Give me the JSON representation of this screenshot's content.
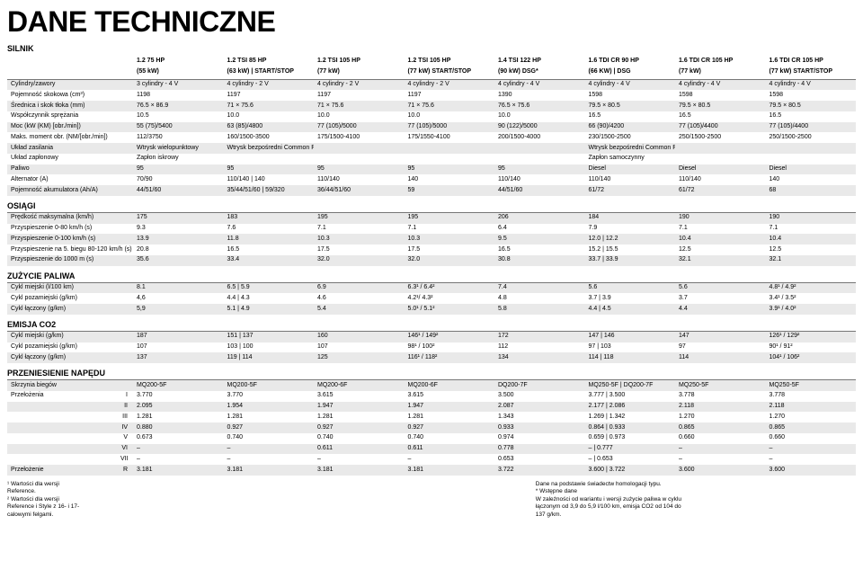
{
  "page_title": "DANE TECHNICZNE",
  "sections": {
    "silnik": "SILNIK",
    "osiagi": "OSIĄGI",
    "zuzycie": "ZUŻYCIE PALIWA",
    "emisja": "EMISJA CO2",
    "przeniesienie": "PRZENIESIENIE NAPĘDU"
  },
  "headers": {
    "top": [
      "1.2 75 HP",
      "1.2 TSI 85 HP",
      "1.2 TSI 105 HP",
      "1.2 TSI 105 HP",
      "1.4 TSI 122 HP",
      "1.6 TDI CR 90 HP",
      "1.6 TDI CR 105 HP",
      "1.6 TDI CR 105 HP"
    ],
    "bottom": [
      "(55 kW)",
      "(63 kW) | START/STOP",
      "(77 kW)",
      "(77 kW) START/STOP",
      "(90 kW) DSG*",
      "(66 KW) | DSG",
      "(77 kW)",
      "(77 kW) START/STOP"
    ]
  },
  "silnik_rows": [
    {
      "label": "Cylindry/zawory",
      "v": [
        "3 cylindry - 4 V",
        "4 cylindry - 2 V",
        "4 cylindry - 2 V",
        "4 cylindry - 2 V",
        "4 cylindry - 4 V",
        "4 cylindry - 4 V",
        "4 cylindry - 4 V",
        "4 cylindry - 4 V"
      ]
    },
    {
      "label": "Pojemność skokowa (cm³)",
      "v": [
        "1198",
        "1197",
        "1197",
        "1197",
        "1390",
        "1598",
        "1598",
        "1598"
      ]
    },
    {
      "label": "Średnica i skok tłoka (mm)",
      "v": [
        "76.5 × 86.9",
        "71 × 75.6",
        "71 × 75.6",
        "71 × 75.6",
        "76.5 × 75.6",
        "79.5 × 80.5",
        "79.5 × 80.5",
        "79.5 × 80.5"
      ]
    },
    {
      "label": "Współczynnik sprężania",
      "v": [
        "10.5",
        "10.0",
        "10.0",
        "10.0",
        "10.0",
        "16.5",
        "16.5",
        "16.5"
      ]
    },
    {
      "label": "Moc (kW (KM) [obr./min])",
      "v": [
        "55 (75)/5400",
        "63 (85)/4800",
        "77 (105)/5000",
        "77 (105)/5000",
        "90 (122)/5000",
        "66 (90)/4200",
        "77 (105)/4400",
        "77 (105)/4400"
      ]
    },
    {
      "label": "Maks. moment obr. (NM/[obr./min])",
      "v": [
        "112/3750",
        "160/1500-3500",
        "175/1500-4100",
        "175/1550-4100",
        "200/1500-4000",
        "230/1500-2500",
        "250/1500-2500",
        "250/1500-2500"
      ]
    },
    {
      "label": "Układ zasilania",
      "v": [
        "Wtrysk wielopunktowy",
        "Wtrysk bezpośredni Common Rail",
        "",
        "",
        "",
        "Wtrysk bezpośredni Common Rail",
        "",
        ""
      ]
    },
    {
      "label": "Układ zapłonowy",
      "v": [
        "Zapłon iskrowy",
        "",
        "",
        "",
        "",
        "Zapłon samoczynny",
        "",
        ""
      ]
    },
    {
      "label": "Paliwo",
      "v": [
        "95",
        "95",
        "95",
        "95",
        "95",
        "Diesel",
        "Diesel",
        "Diesel"
      ]
    },
    {
      "label": "Alternator (A)",
      "v": [
        "70/90",
        "110/140 | 140",
        "110/140",
        "140",
        "110/140",
        "110/140",
        "110/140",
        "140"
      ]
    },
    {
      "label": "Pojemność akumulatora (Ah/A)",
      "v": [
        "44/51/60",
        "35/44/51/60 | 59/320",
        "36/44/51/60",
        "59",
        "44/51/60",
        "61/72",
        "61/72",
        "68"
      ]
    }
  ],
  "osiagi_rows": [
    {
      "label": "Prędkość maksymalna (km/h)",
      "v": [
        "175",
        "183",
        "195",
        "195",
        "206",
        "184",
        "190",
        "190"
      ]
    },
    {
      "label": "Przyspieszenie 0-80 km/h (s)",
      "v": [
        "9.3",
        "7.6",
        "7.1",
        "7.1",
        "6.4",
        "7.9",
        "7.1",
        "7.1"
      ]
    },
    {
      "label": "Przyspieszenie 0-100 km/h (s)",
      "v": [
        "13.9",
        "11.8",
        "10.3",
        "10.3",
        "9.5",
        "12.0 | 12.2",
        "10.4",
        "10.4"
      ]
    },
    {
      "label": "Przyspieszenie na 5. biegu 80-120 km/h (s)",
      "v": [
        "20.8",
        "16.5",
        "17.5",
        "17.5",
        "16.5",
        "15.2 | 15.5",
        "12.5",
        "12.5"
      ]
    },
    {
      "label": "Przyspieszenie do 1000 m (s)",
      "v": [
        "35.6",
        "33.4",
        "32.0",
        "32.0",
        "30.8",
        "33.7 | 33.9",
        "32.1",
        "32.1"
      ]
    }
  ],
  "zuzycie_rows": [
    {
      "label": "Cykl miejski (l/100 km)",
      "v": [
        "8.1",
        "6.5 | 5.9",
        "6.9",
        "6.3¹ / 6.4²",
        "7.4",
        "5.6",
        "5.6",
        "4.8¹ / 4.9²"
      ]
    },
    {
      "label": "Cykl pozamiejski (g/km)",
      "v": [
        "4,6",
        "4.4 | 4.3",
        "4.6",
        "4.2¹/ 4.3²",
        "4.8",
        "3.7 | 3.9",
        "3.7",
        "3.4¹ / 3.5²"
      ]
    },
    {
      "label": "Cykl łączony (g/km)",
      "v": [
        "5,9",
        "5.1 | 4.9",
        "5.4",
        "5.0¹ / 5.1²",
        "5.8",
        "4.4 | 4.5",
        "4.4",
        "3.9¹ / 4.0²"
      ]
    }
  ],
  "emisja_rows": [
    {
      "label": "Cykl miejski (g/km)",
      "v": [
        "187",
        "151 | 137",
        "160",
        "146¹ / 149²",
        "172",
        "147 | 146",
        "147",
        "126¹ / 129²"
      ]
    },
    {
      "label": "Cykl pozamiejski (g/km)",
      "v": [
        "107",
        "103 | 100",
        "107",
        "98¹ / 100²",
        "112",
        "97 | 103",
        "97",
        "90¹ / 91²"
      ]
    },
    {
      "label": "Cykl łączony (g/km)",
      "v": [
        "137",
        "119 | 114",
        "125",
        "116¹ / 118²",
        "134",
        "114 | 118",
        "114",
        "104¹ / 106²"
      ]
    }
  ],
  "przeniesienie": {
    "label_skrzynia": "Skrzynia biegów",
    "skrzynia": [
      "MQ200-5F",
      "MQ200-5F",
      "MQ200-6F",
      "MQ200-6F",
      "DQ200-7F",
      "MQ250-5F | DQ200-7F",
      "MQ250-5F",
      "MQ250-5F"
    ],
    "label_przel": "Przełożenia",
    "gears": [
      {
        "g": "I",
        "v": [
          "3.770",
          "3.770",
          "3.615",
          "3.615",
          "3.500",
          "3.777 | 3.500",
          "3.778",
          "3.778"
        ]
      },
      {
        "g": "II",
        "v": [
          "2.095",
          "1.954",
          "1.947",
          "1.947",
          "2.087",
          "2.177 | 2.086",
          "2.118",
          "2.118"
        ]
      },
      {
        "g": "III",
        "v": [
          "1.281",
          "1.281",
          "1.281",
          "1.281",
          "1.343",
          "1.269 | 1.342",
          "1.270",
          "1.270"
        ]
      },
      {
        "g": "IV",
        "v": [
          "0.880",
          "0.927",
          "0.927",
          "0.927",
          "0.933",
          "0.864 | 0.933",
          "0.865",
          "0.865"
        ]
      },
      {
        "g": "V",
        "v": [
          "0.673",
          "0.740",
          "0.740",
          "0.740",
          "0.974",
          "0.659 | 0.973",
          "0.660",
          "0.660"
        ]
      },
      {
        "g": "VI",
        "v": [
          "–",
          "–",
          "0.611",
          "0.611",
          "0.778",
          "– | 0.777",
          "–",
          "–"
        ]
      },
      {
        "g": "VII",
        "v": [
          "–",
          "–",
          "–",
          "–",
          "0.653",
          "– | 0.653",
          "–",
          "–"
        ]
      }
    ],
    "label_r": "Przełożenie",
    "r": {
      "g": "R",
      "v": [
        "3.181",
        "3.181",
        "3.181",
        "3.181",
        "3.722",
        "3.600 | 3.722",
        "3.600",
        "3.600"
      ]
    }
  },
  "footnotes": {
    "left": [
      "¹ Wartości dla wersji Reference.",
      "² Wartości dla wersji Reference i Style z 16- i 17- calowymi felgami."
    ],
    "right": [
      "Dane na podstawie świadectw homologacji typu.",
      "* Wstępne dane",
      "W zależności od wariantu i wersji zużycie paliwa w cyklu łączonym od 3,9 do 5,9 l/100 km, emisja CO2 od 104 do 137 g/km."
    ]
  }
}
